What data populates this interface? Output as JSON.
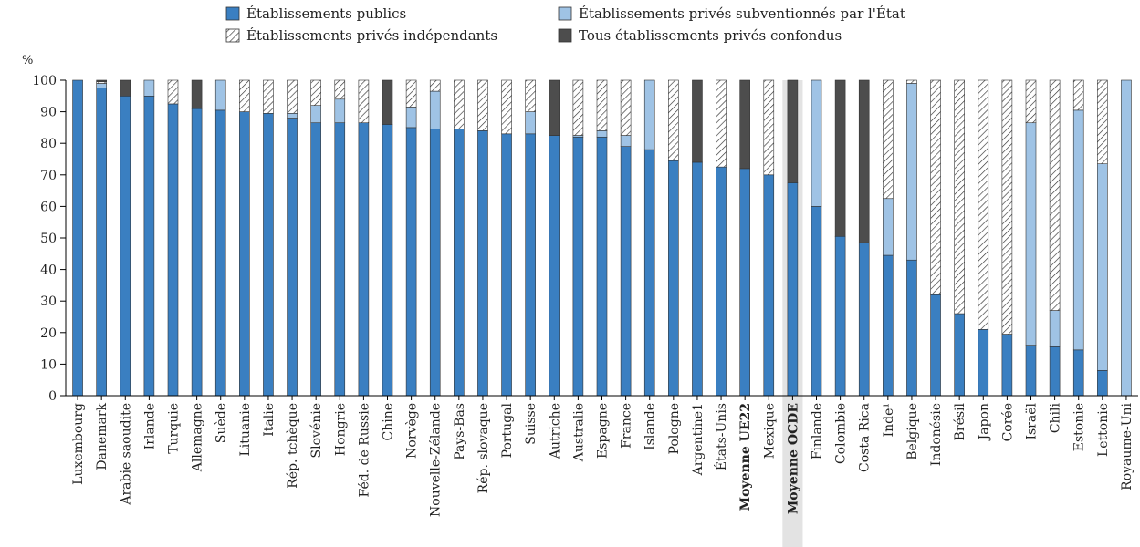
{
  "chart_data": {
    "type": "bar",
    "stacked": true,
    "ylabel": "%",
    "ylim": [
      0,
      100
    ],
    "yticks": [
      0,
      10,
      20,
      30,
      40,
      50,
      60,
      70,
      80,
      90,
      100
    ],
    "legend_position": "top",
    "highlighted_category": "Moyenne OCDE",
    "bold_categories": [
      "Moyenne UE22",
      "Moyenne OCDE"
    ],
    "categories": [
      "Luxembourg",
      "Danemark",
      "Arabie saoudite",
      "Irlande",
      "Turquie",
      "Allemagne",
      "Suède",
      "Lituanie",
      "Italie",
      "Rép. tchèque",
      "Slovénie",
      "Hongrie",
      "Féd. de Russie",
      "Chine",
      "Norvège",
      "Nouvelle-Zélande",
      "Pays-Bas",
      "Rép. slovaque",
      "Portugal",
      "Suisse",
      "Autriche",
      "Australie",
      "Espagne",
      "France",
      "Islande",
      "Pologne",
      "Argentine1",
      "États-Unis",
      "Moyenne UE22",
      "Mexique",
      "Moyenne OCDE",
      "Finlande",
      "Colombie",
      "Costa Rica",
      "Inde¹",
      "Belgique",
      "Indonésie",
      "Brésil",
      "Japon",
      "Corée",
      "Israël",
      "Chili",
      "Estonie",
      "Lettonie",
      "Royaume-Uni"
    ],
    "series": [
      {
        "name": "Établissements publics",
        "color": "#3a7fc1",
        "pattern": "solid",
        "values": [
          100,
          97.5,
          95,
          95,
          92.5,
          91,
          90.5,
          90,
          89.5,
          88,
          86.5,
          86.5,
          86.5,
          86,
          85,
          84.5,
          84.5,
          84,
          83,
          83,
          82.5,
          82,
          82,
          79,
          78,
          74.5,
          74,
          72.5,
          72,
          70,
          67.5,
          60,
          50.5,
          48.5,
          44.5,
          43,
          32,
          26,
          21,
          19.5,
          16,
          15.5,
          14.5,
          8,
          0
        ]
      },
      {
        "name": "Établissements privés subventionnés par l'État",
        "color": "#9fc3e5",
        "pattern": "solid",
        "values": [
          0,
          1.5,
          0,
          5,
          0,
          0,
          9.5,
          0,
          0,
          1.5,
          5.5,
          7.5,
          0,
          0,
          6.5,
          12,
          0,
          0,
          0,
          7,
          0,
          0.5,
          2,
          3.5,
          22,
          0,
          0,
          0,
          0,
          0,
          0,
          40,
          0,
          0,
          18,
          56,
          0,
          0,
          0,
          0,
          70.5,
          11.5,
          76,
          65.5,
          100
        ]
      },
      {
        "name": "Établissements privés indépendants",
        "color": "#ffffff",
        "pattern": "hatch",
        "values": [
          0,
          0.5,
          0,
          0,
          7.5,
          0,
          0,
          10,
          10.5,
          10.5,
          8,
          6,
          13.5,
          0,
          8.5,
          3.5,
          15.5,
          16,
          17,
          10,
          0,
          17.5,
          16,
          17.5,
          0,
          25.5,
          0,
          27.5,
          0,
          30,
          0,
          0,
          0,
          0,
          37.5,
          1,
          68,
          74,
          79,
          80.5,
          13.5,
          73,
          9.5,
          26.5,
          0
        ]
      },
      {
        "name": "Tous établissements privés confondus",
        "color": "#4d4d4d",
        "pattern": "solid",
        "values": [
          0,
          0.5,
          5,
          0,
          0,
          9,
          0,
          0,
          0,
          0,
          0,
          0,
          0,
          14,
          0,
          0,
          0,
          0,
          0,
          0,
          17.5,
          0,
          0,
          0,
          0,
          0,
          26,
          0,
          28,
          0,
          32.5,
          0,
          49.5,
          51.5,
          0,
          0,
          0,
          0,
          0,
          0,
          0,
          0,
          0,
          0,
          0
        ]
      }
    ]
  }
}
